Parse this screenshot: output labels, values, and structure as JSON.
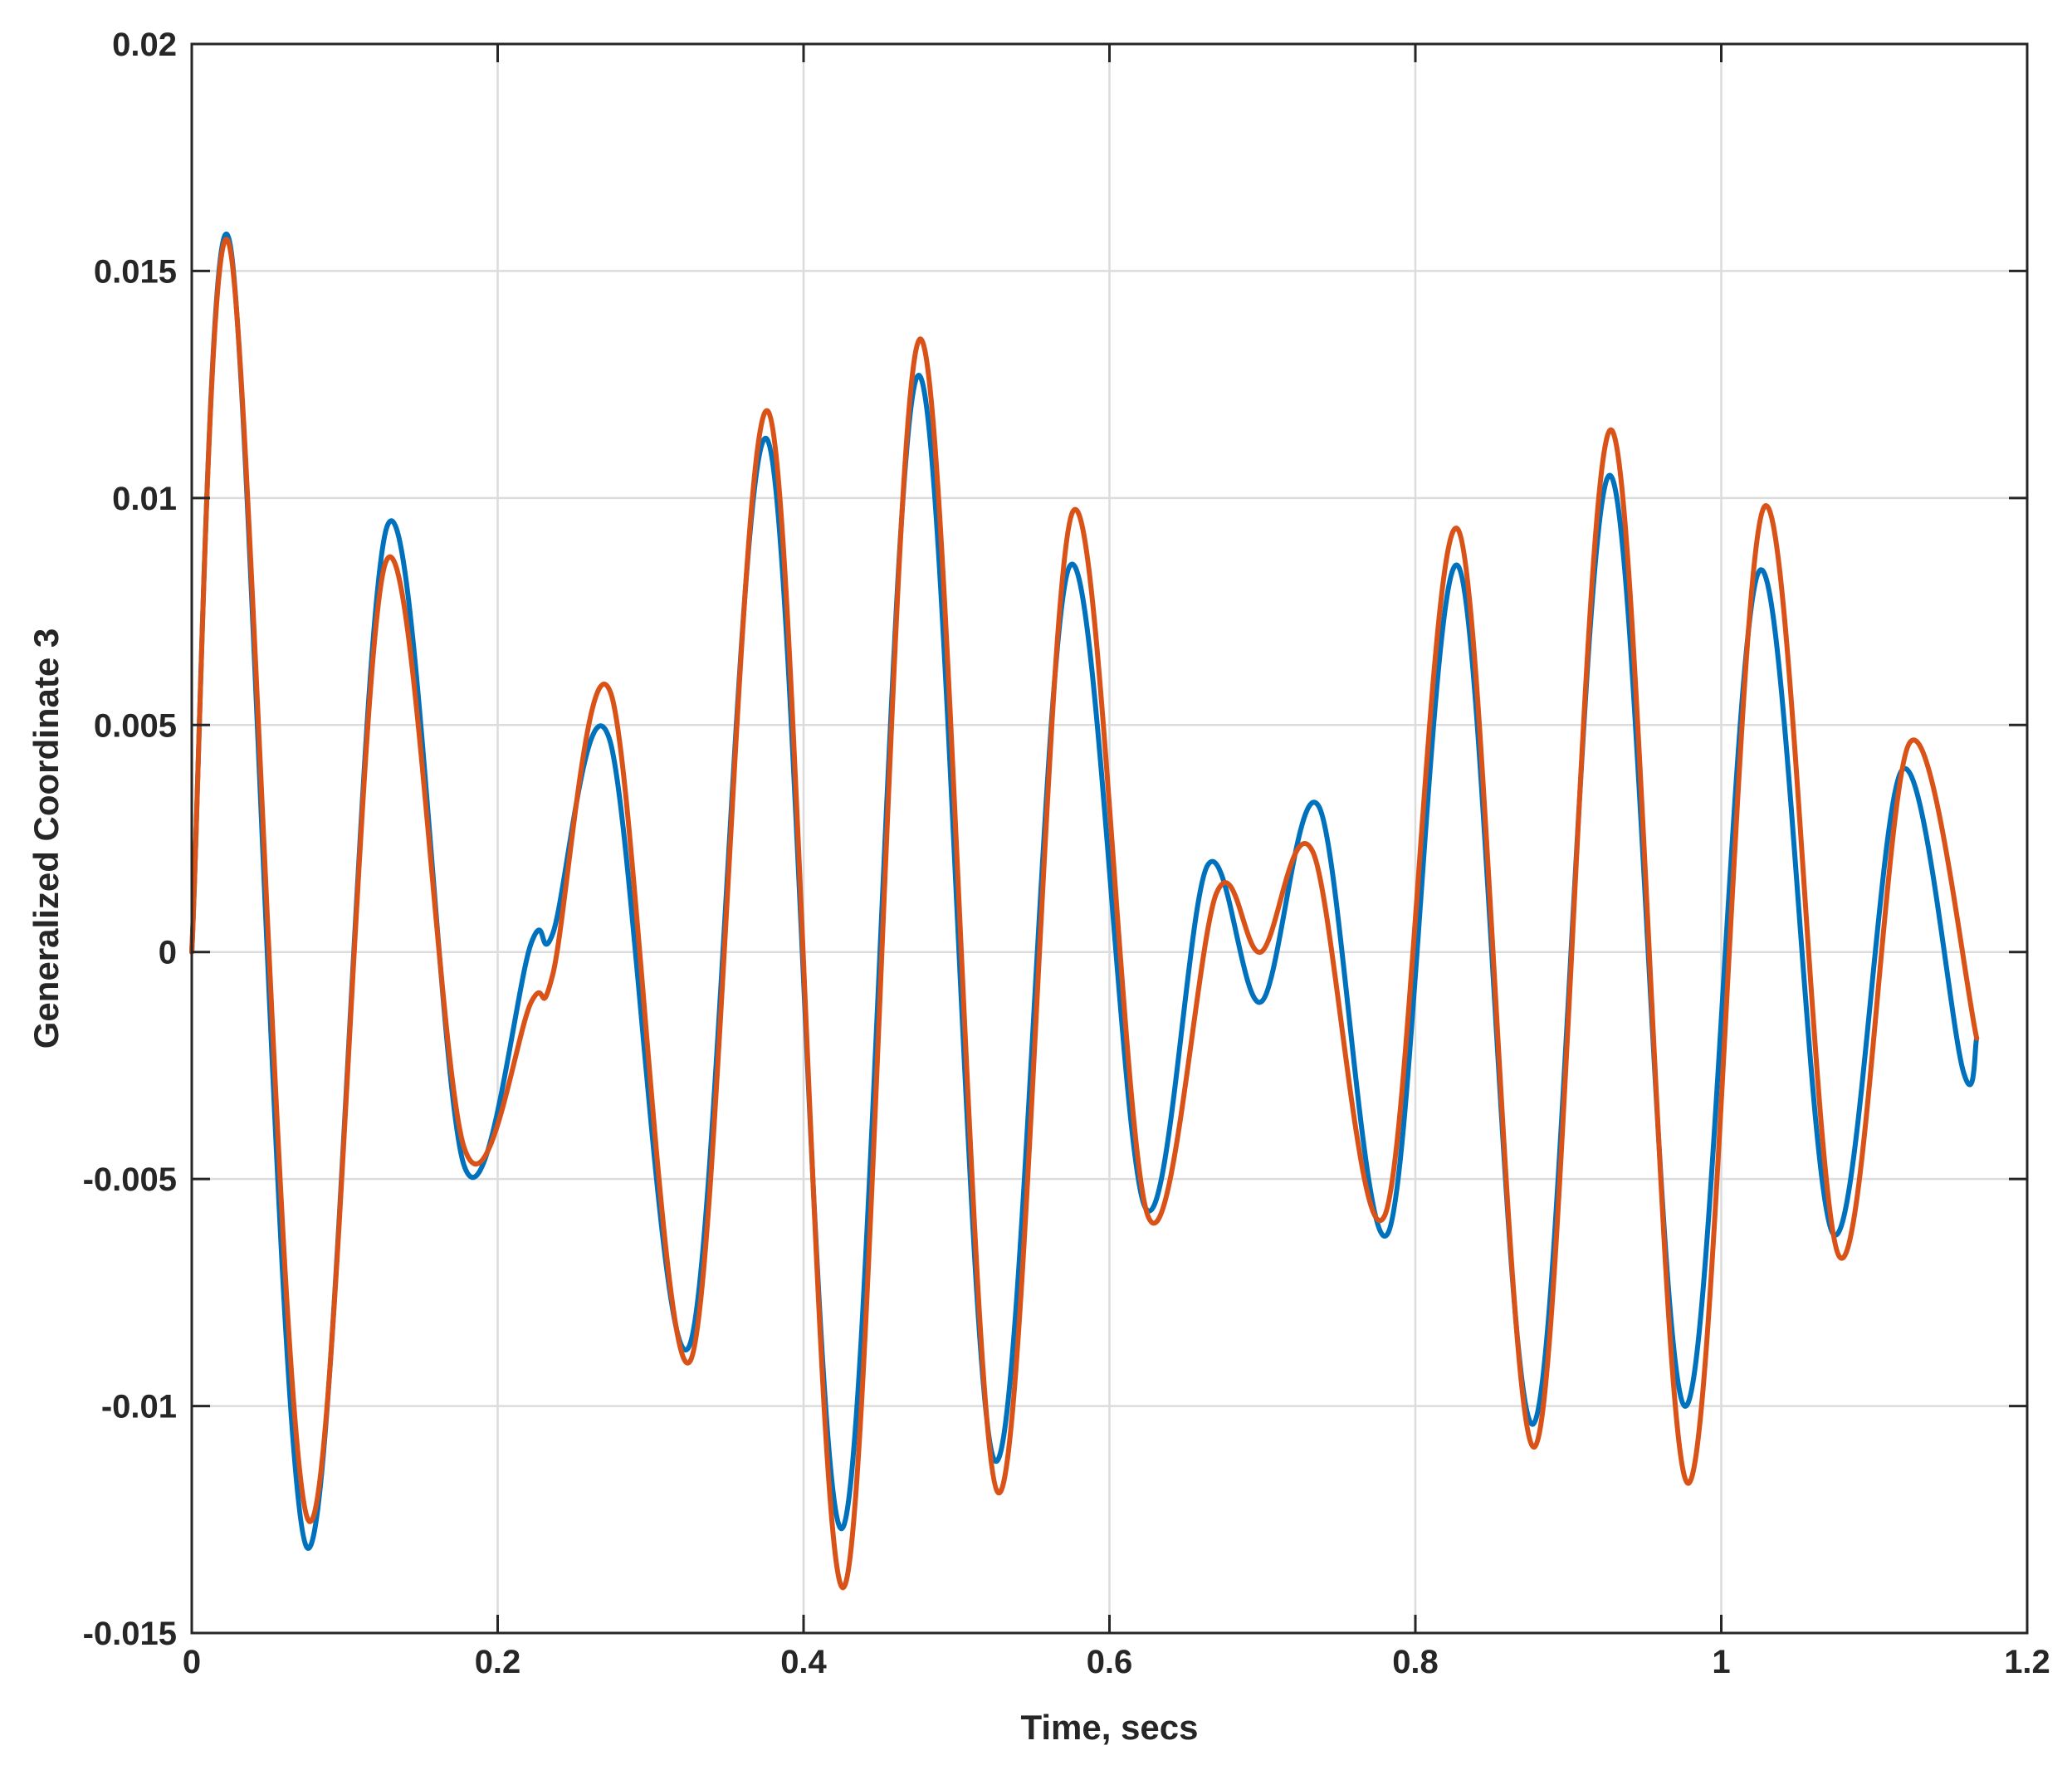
{
  "chart_data": {
    "type": "line",
    "title": "",
    "xlabel": "Time, secs",
    "ylabel": "Generalized Coordinate 3",
    "xlim": [
      0,
      1.2
    ],
    "ylim": [
      -0.015,
      0.02
    ],
    "grid": true,
    "x_ticks": [
      {
        "value": 0,
        "label": "0"
      },
      {
        "value": 0.2,
        "label": "0.2"
      },
      {
        "value": 0.4,
        "label": "0.4"
      },
      {
        "value": 0.6,
        "label": "0.6"
      },
      {
        "value": 0.8,
        "label": "0.8"
      },
      {
        "value": 1.0,
        "label": "1"
      },
      {
        "value": 1.2,
        "label": "1.2"
      }
    ],
    "y_ticks": [
      {
        "value": -0.015,
        "label": "-0.015"
      },
      {
        "value": -0.01,
        "label": "-0.01"
      },
      {
        "value": -0.005,
        "label": "-0.005"
      },
      {
        "value": 0,
        "label": "0"
      },
      {
        "value": 0.005,
        "label": "0.005"
      },
      {
        "value": 0.01,
        "label": "0.01"
      },
      {
        "value": 0.015,
        "label": "0.015"
      },
      {
        "value": 0.02,
        "label": "0.02"
      }
    ],
    "series": [
      {
        "color": "#0072BD",
        "points": [
          [
            0.0,
            0.0
          ],
          [
            0.025,
            0.0156
          ],
          [
            0.075,
            -0.0131
          ],
          [
            0.128,
            0.0094
          ],
          [
            0.178,
            -0.0047
          ],
          [
            0.222,
            0.0002
          ],
          [
            0.236,
            0.0004
          ],
          [
            0.273,
            0.0047
          ],
          [
            0.325,
            -0.0087
          ],
          [
            0.376,
            0.0113
          ],
          [
            0.425,
            -0.0127
          ],
          [
            0.475,
            0.0127
          ],
          [
            0.525,
            -0.0112
          ],
          [
            0.574,
            0.0085
          ],
          [
            0.623,
            -0.0056
          ],
          [
            0.664,
            0.0019
          ],
          [
            0.699,
            -0.0011
          ],
          [
            0.737,
            0.0032
          ],
          [
            0.782,
            -0.0062
          ],
          [
            0.828,
            0.0085
          ],
          [
            0.877,
            -0.0104
          ],
          [
            0.927,
            0.0105
          ],
          [
            0.976,
            -0.01
          ],
          [
            1.025,
            0.0084
          ],
          [
            1.073,
            -0.0062
          ],
          [
            1.118,
            0.004
          ],
          [
            1.158,
            -0.0026
          ],
          [
            1.167,
            -0.0019
          ]
        ]
      },
      {
        "color": "#D95319",
        "points": [
          [
            0.0,
            0.0
          ],
          [
            0.025,
            0.0155
          ],
          [
            0.076,
            -0.0125
          ],
          [
            0.127,
            0.0086
          ],
          [
            0.178,
            -0.0043
          ],
          [
            0.222,
            -0.0011
          ],
          [
            0.236,
            -0.0005
          ],
          [
            0.274,
            0.0057
          ],
          [
            0.326,
            -0.009
          ],
          [
            0.377,
            0.0119
          ],
          [
            0.426,
            -0.014
          ],
          [
            0.476,
            0.0135
          ],
          [
            0.527,
            -0.0119
          ],
          [
            0.576,
            0.0097
          ],
          [
            0.625,
            -0.0058
          ],
          [
            0.67,
            0.0013
          ],
          [
            0.699,
            0.0
          ],
          [
            0.733,
            0.0022
          ],
          [
            0.78,
            -0.0058
          ],
          [
            0.828,
            0.0093
          ],
          [
            0.878,
            -0.0109
          ],
          [
            0.928,
            0.0115
          ],
          [
            0.978,
            -0.0117
          ],
          [
            1.028,
            0.0098
          ],
          [
            1.077,
            -0.0067
          ],
          [
            1.123,
            0.0046
          ],
          [
            1.167,
            -0.0019
          ]
        ]
      }
    ]
  }
}
